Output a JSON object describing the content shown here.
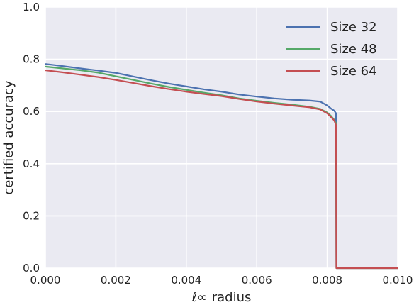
{
  "chart_data": {
    "type": "line",
    "title": "",
    "xlabel": "ℓ∞ radius",
    "ylabel": "certified accuracy",
    "xlim": [
      0.0,
      0.01
    ],
    "ylim": [
      0.0,
      1.0
    ],
    "xticks": [
      "0.000",
      "0.002",
      "0.004",
      "0.006",
      "0.008",
      "0.010"
    ],
    "yticks": [
      "0.0",
      "0.2",
      "0.4",
      "0.6",
      "0.8",
      "1.0"
    ],
    "grid": true,
    "legend_position": "top-right",
    "colors": {
      "background": "#EAEAF2",
      "grid": "#FFFFFF",
      "text": "#222222"
    },
    "series": [
      {
        "name": "Size 32",
        "color": "#4C72B0",
        "points": [
          [
            0.0,
            0.782
          ],
          [
            0.0005,
            0.774
          ],
          [
            0.001,
            0.765
          ],
          [
            0.0015,
            0.757
          ],
          [
            0.002,
            0.748
          ],
          [
            0.0025,
            0.734
          ],
          [
            0.003,
            0.72
          ],
          [
            0.0035,
            0.707
          ],
          [
            0.004,
            0.696
          ],
          [
            0.0045,
            0.685
          ],
          [
            0.005,
            0.676
          ],
          [
            0.0055,
            0.665
          ],
          [
            0.006,
            0.657
          ],
          [
            0.0065,
            0.65
          ],
          [
            0.007,
            0.645
          ],
          [
            0.0075,
            0.642
          ],
          [
            0.0078,
            0.638
          ],
          [
            0.008,
            0.623
          ],
          [
            0.0081,
            0.612
          ],
          [
            0.0082,
            0.603
          ],
          [
            0.00825,
            0.593
          ],
          [
            0.00826,
            0.0
          ],
          [
            0.01,
            0.0
          ]
        ]
      },
      {
        "name": "Size 48",
        "color": "#55A868",
        "points": [
          [
            0.0,
            0.772
          ],
          [
            0.0005,
            0.765
          ],
          [
            0.001,
            0.758
          ],
          [
            0.0015,
            0.749
          ],
          [
            0.002,
            0.735
          ],
          [
            0.0025,
            0.721
          ],
          [
            0.003,
            0.707
          ],
          [
            0.0035,
            0.694
          ],
          [
            0.004,
            0.683
          ],
          [
            0.0045,
            0.672
          ],
          [
            0.005,
            0.662
          ],
          [
            0.0055,
            0.65
          ],
          [
            0.006,
            0.641
          ],
          [
            0.0065,
            0.633
          ],
          [
            0.007,
            0.626
          ],
          [
            0.0075,
            0.618
          ],
          [
            0.0078,
            0.61
          ],
          [
            0.008,
            0.596
          ],
          [
            0.0081,
            0.584
          ],
          [
            0.0082,
            0.568
          ],
          [
            0.00825,
            0.555
          ],
          [
            0.00826,
            0.0
          ],
          [
            0.01,
            0.0
          ]
        ]
      },
      {
        "name": "Size 64",
        "color": "#C44E52",
        "points": [
          [
            0.0,
            0.758
          ],
          [
            0.0005,
            0.75
          ],
          [
            0.001,
            0.741
          ],
          [
            0.0015,
            0.732
          ],
          [
            0.002,
            0.721
          ],
          [
            0.0025,
            0.709
          ],
          [
            0.003,
            0.697
          ],
          [
            0.0035,
            0.686
          ],
          [
            0.004,
            0.676
          ],
          [
            0.0045,
            0.667
          ],
          [
            0.005,
            0.659
          ],
          [
            0.0055,
            0.648
          ],
          [
            0.006,
            0.638
          ],
          [
            0.0065,
            0.63
          ],
          [
            0.007,
            0.623
          ],
          [
            0.0075,
            0.616
          ],
          [
            0.0078,
            0.608
          ],
          [
            0.008,
            0.593
          ],
          [
            0.0081,
            0.58
          ],
          [
            0.0082,
            0.566
          ],
          [
            0.00825,
            0.548
          ],
          [
            0.00826,
            0.0
          ],
          [
            0.01,
            0.0
          ]
        ]
      }
    ]
  }
}
